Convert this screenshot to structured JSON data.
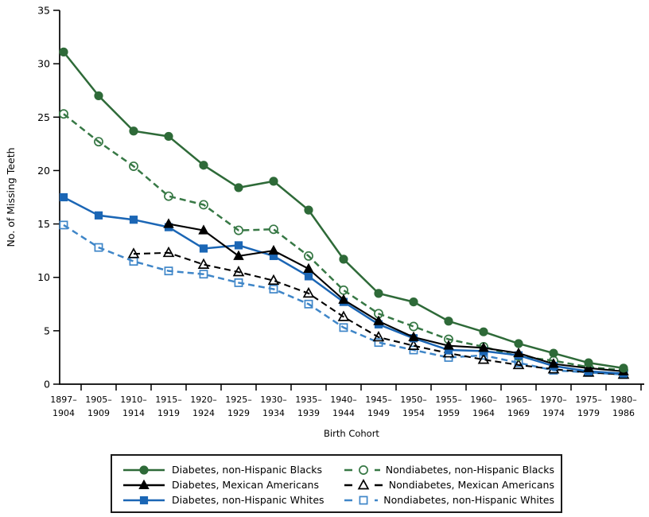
{
  "chart_data": {
    "type": "line",
    "xlabel": "Birth Cohort",
    "ylabel": "No. of Missing Teeth",
    "ylim": [
      0,
      35
    ],
    "yticks": [
      0,
      5,
      10,
      15,
      20,
      25,
      30,
      35
    ],
    "grid": false,
    "legend_position": "bottom-box",
    "legend_columns": [
      [
        0,
        1,
        2
      ],
      [
        3,
        4,
        5
      ]
    ],
    "categories": [
      "1897–1904",
      "1905–1909",
      "1910–1914",
      "1915–1919",
      "1920–1924",
      "1925–1929",
      "1930–1934",
      "1935–1939",
      "1940–1944",
      "1945–1949",
      "1950–1954",
      "1955–1959",
      "1960–1964",
      "1965–1969",
      "1970–1974",
      "1975–1979",
      "1980–1986"
    ],
    "series": [
      {
        "name": "Diabetes, non-Hispanic Blacks",
        "color": "#2e6a38",
        "line": "solid",
        "marker": "circle-filled",
        "values": [
          31.1,
          27.0,
          23.7,
          23.2,
          20.5,
          18.4,
          19.0,
          16.3,
          11.7,
          8.5,
          7.7,
          5.9,
          4.9,
          3.8,
          2.9,
          2.0,
          1.5
        ]
      },
      {
        "name": "Diabetes, Mexican Americans",
        "color": "#000000",
        "line": "solid",
        "marker": "triangle-filled",
        "values": [
          null,
          null,
          null,
          15.0,
          14.4,
          12.0,
          12.5,
          10.8,
          7.9,
          5.9,
          4.4,
          3.6,
          3.4,
          2.9,
          1.9,
          1.5,
          1.2
        ]
      },
      {
        "name": "Diabetes, non-Hispanic Whites",
        "color": "#1b66b5",
        "line": "solid",
        "marker": "square-filled",
        "values": [
          17.5,
          15.8,
          15.4,
          14.7,
          12.7,
          13.0,
          12.0,
          10.1,
          7.7,
          5.6,
          4.3,
          3.2,
          3.1,
          2.7,
          1.7,
          1.2,
          1.0
        ]
      },
      {
        "name": "Nondiabetes, non-Hispanic Blacks",
        "color": "#377845",
        "line": "dashed",
        "marker": "circle-open",
        "values": [
          25.3,
          22.7,
          20.4,
          17.6,
          16.8,
          14.4,
          14.5,
          12.0,
          8.8,
          6.6,
          5.4,
          4.2,
          3.5,
          2.6,
          2.2,
          1.6,
          1.3
        ]
      },
      {
        "name": "Nondiabetes, Mexican Americans",
        "color": "#000000",
        "line": "dashed",
        "marker": "triangle-open",
        "values": [
          null,
          null,
          12.2,
          12.3,
          11.2,
          10.5,
          9.7,
          8.5,
          6.3,
          4.4,
          3.6,
          2.9,
          2.3,
          1.8,
          1.4,
          1.1,
          0.9
        ]
      },
      {
        "name": "Nondiabetes, non-Hispanic Whites",
        "color": "#3f86c8",
        "line": "dashed",
        "marker": "square-open",
        "values": [
          14.9,
          12.8,
          11.5,
          10.6,
          10.3,
          9.5,
          8.9,
          7.5,
          5.3,
          3.9,
          3.2,
          2.5,
          2.7,
          2.0,
          1.3,
          1.1,
          0.9
        ]
      }
    ]
  }
}
